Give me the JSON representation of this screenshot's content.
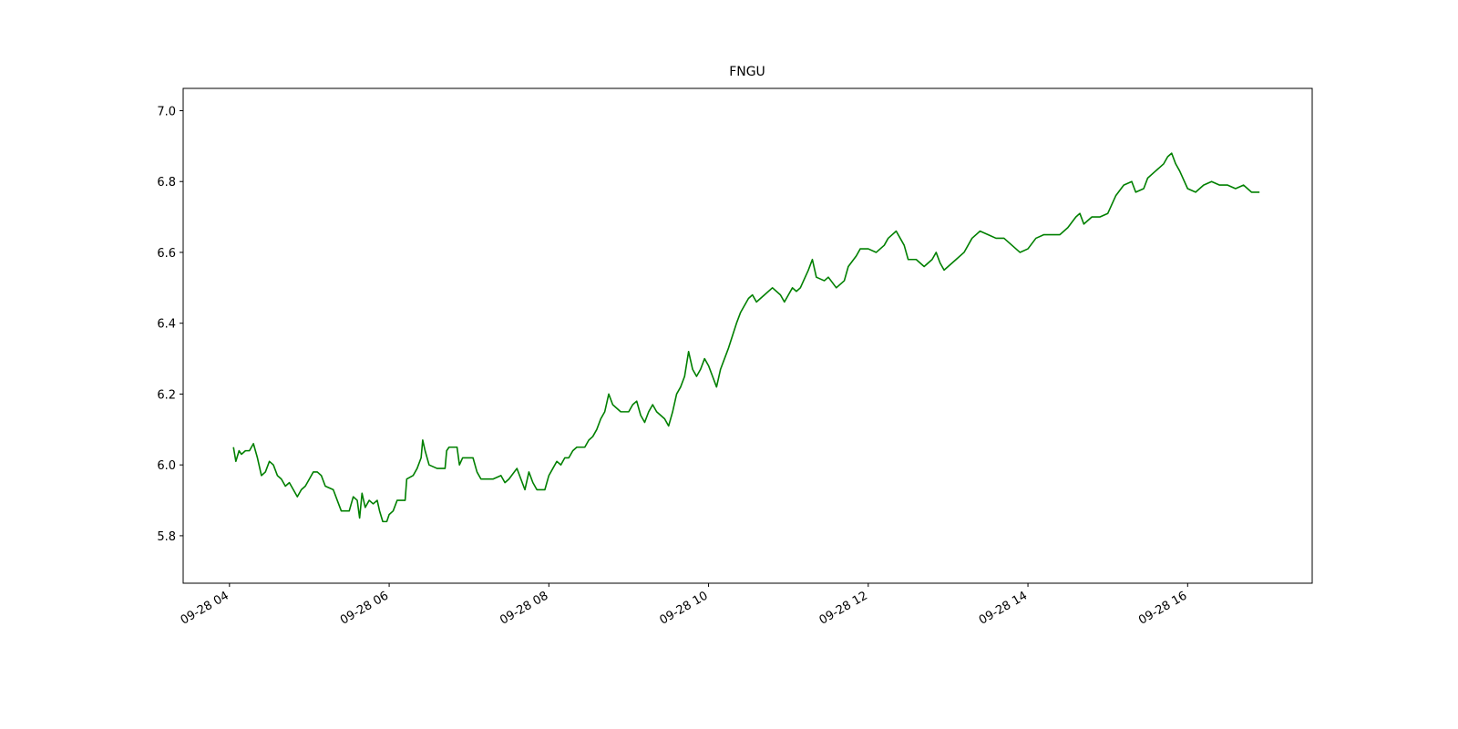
{
  "chart_data": {
    "type": "line",
    "title": "FNGU",
    "x": [
      4.05,
      4.08,
      4.12,
      4.15,
      4.2,
      4.25,
      4.3,
      4.35,
      4.4,
      4.45,
      4.5,
      4.55,
      4.6,
      4.65,
      4.7,
      4.75,
      4.8,
      4.85,
      4.9,
      4.95,
      5.0,
      5.05,
      5.1,
      5.15,
      5.2,
      5.3,
      5.35,
      5.4,
      5.5,
      5.55,
      5.6,
      5.63,
      5.66,
      5.7,
      5.75,
      5.8,
      5.85,
      5.88,
      5.92,
      5.97,
      6.0,
      6.05,
      6.1,
      6.2,
      6.22,
      6.3,
      6.35,
      6.4,
      6.42,
      6.45,
      6.5,
      6.6,
      6.7,
      6.72,
      6.75,
      6.85,
      6.88,
      6.92,
      7.0,
      7.05,
      7.1,
      7.15,
      7.3,
      7.4,
      7.45,
      7.5,
      7.6,
      7.65,
      7.7,
      7.75,
      7.8,
      7.85,
      7.95,
      8.0,
      8.05,
      8.1,
      8.15,
      8.2,
      8.25,
      8.3,
      8.35,
      8.45,
      8.5,
      8.55,
      8.6,
      8.65,
      8.7,
      8.75,
      8.8,
      8.9,
      9.0,
      9.05,
      9.1,
      9.15,
      9.2,
      9.25,
      9.3,
      9.35,
      9.45,
      9.5,
      9.55,
      9.6,
      9.65,
      9.7,
      9.75,
      9.8,
      9.85,
      9.9,
      9.95,
      10.0,
      10.05,
      10.1,
      10.15,
      10.2,
      10.25,
      10.35,
      10.4,
      10.45,
      10.5,
      10.55,
      10.6,
      10.7,
      10.8,
      10.9,
      10.95,
      11.0,
      11.05,
      11.1,
      11.15,
      11.25,
      11.3,
      11.35,
      11.45,
      11.5,
      11.6,
      11.7,
      11.75,
      11.85,
      11.9,
      12.0,
      12.1,
      12.2,
      12.25,
      12.35,
      12.45,
      12.5,
      12.6,
      12.7,
      12.8,
      12.85,
      12.9,
      12.95,
      13.0,
      13.1,
      13.2,
      13.3,
      13.4,
      13.5,
      13.6,
      13.7,
      13.8,
      13.9,
      14.0,
      14.1,
      14.2,
      14.3,
      14.4,
      14.5,
      14.6,
      14.65,
      14.7,
      14.8,
      14.9,
      15.0,
      15.1,
      15.2,
      15.3,
      15.35,
      15.45,
      15.5,
      15.6,
      15.7,
      15.75,
      15.8,
      15.85,
      15.9,
      16.0,
      16.1,
      16.2,
      16.3,
      16.4,
      16.5,
      16.6,
      16.7,
      16.8,
      16.9
    ],
    "series": [
      {
        "color": "#008000",
        "values": [
          6.05,
          6.01,
          6.04,
          6.03,
          6.04,
          6.04,
          6.06,
          6.02,
          5.97,
          5.98,
          6.01,
          6.0,
          5.97,
          5.96,
          5.94,
          5.95,
          5.93,
          5.91,
          5.93,
          5.94,
          5.96,
          5.98,
          5.98,
          5.97,
          5.94,
          5.93,
          5.9,
          5.87,
          5.87,
          5.91,
          5.9,
          5.85,
          5.92,
          5.88,
          5.9,
          5.89,
          5.9,
          5.87,
          5.84,
          5.84,
          5.86,
          5.87,
          5.9,
          5.9,
          5.96,
          5.97,
          5.99,
          6.02,
          6.07,
          6.04,
          6.0,
          5.99,
          5.99,
          6.04,
          6.05,
          6.05,
          6.0,
          6.02,
          6.02,
          6.02,
          5.98,
          5.96,
          5.96,
          5.97,
          5.95,
          5.96,
          5.99,
          5.96,
          5.93,
          5.98,
          5.95,
          5.93,
          5.93,
          5.97,
          5.99,
          6.01,
          6.0,
          6.02,
          6.02,
          6.04,
          6.05,
          6.05,
          6.07,
          6.08,
          6.1,
          6.13,
          6.15,
          6.2,
          6.17,
          6.15,
          6.15,
          6.17,
          6.18,
          6.14,
          6.12,
          6.15,
          6.17,
          6.15,
          6.13,
          6.11,
          6.15,
          6.2,
          6.22,
          6.25,
          6.32,
          6.27,
          6.25,
          6.27,
          6.3,
          6.28,
          6.25,
          6.22,
          6.27,
          6.3,
          6.33,
          6.4,
          6.43,
          6.45,
          6.47,
          6.48,
          6.46,
          6.48,
          6.5,
          6.48,
          6.46,
          6.48,
          6.5,
          6.49,
          6.5,
          6.55,
          6.58,
          6.53,
          6.52,
          6.53,
          6.5,
          6.52,
          6.56,
          6.59,
          6.61,
          6.61,
          6.6,
          6.62,
          6.64,
          6.66,
          6.62,
          6.58,
          6.58,
          6.56,
          6.58,
          6.6,
          6.57,
          6.55,
          6.56,
          6.58,
          6.6,
          6.64,
          6.66,
          6.65,
          6.64,
          6.64,
          6.62,
          6.6,
          6.61,
          6.64,
          6.65,
          6.65,
          6.65,
          6.67,
          6.7,
          6.71,
          6.68,
          6.7,
          6.7,
          6.71,
          6.76,
          6.79,
          6.8,
          6.77,
          6.78,
          6.81,
          6.83,
          6.85,
          6.87,
          6.88,
          6.85,
          6.83,
          6.78,
          6.77,
          6.79,
          6.8,
          6.79,
          6.79,
          6.78,
          6.79,
          6.77,
          6.77
        ]
      }
    ],
    "xlim": [
      3.42,
      17.56
    ],
    "xticks": [
      {
        "value": 4,
        "label": "09-28 04"
      },
      {
        "value": 6,
        "label": "09-28 06"
      },
      {
        "value": 8,
        "label": "09-28 08"
      },
      {
        "value": 10,
        "label": "09-28 10"
      },
      {
        "value": 12,
        "label": "09-28 12"
      },
      {
        "value": 14,
        "label": "09-28 14"
      },
      {
        "value": 16,
        "label": "09-28 16"
      }
    ],
    "ylim": [
      5.666,
      7.063
    ],
    "yticks": [
      {
        "value": 5.8,
        "label": "5.8"
      },
      {
        "value": 6.0,
        "label": "6.0"
      },
      {
        "value": 6.2,
        "label": "6.2"
      },
      {
        "value": 6.4,
        "label": "6.4"
      },
      {
        "value": 6.6,
        "label": "6.6"
      },
      {
        "value": 6.8,
        "label": "6.8"
      },
      {
        "value": 7.0,
        "label": "7.0"
      }
    ],
    "grid": false
  }
}
